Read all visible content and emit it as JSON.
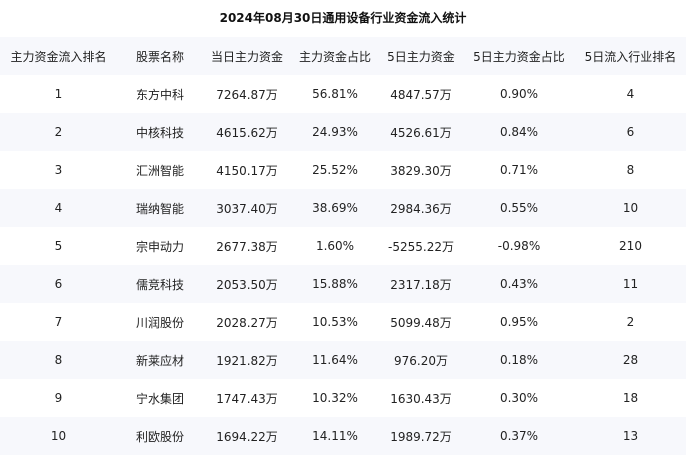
{
  "title": "2024年08月30日通用设备行业资金流入统计",
  "table": {
    "headers": [
      "主力资金流入排名",
      "股票名称",
      "当日主力资金",
      "主力资金占比",
      "5日主力资金",
      "5日主力资金占比",
      "5日流入行业排名"
    ],
    "rows": [
      [
        "1",
        "东方中科",
        "7264.87万",
        "56.81%",
        "4847.57万",
        "0.90%",
        "4"
      ],
      [
        "2",
        "中核科技",
        "4615.62万",
        "24.93%",
        "4526.61万",
        "0.84%",
        "6"
      ],
      [
        "3",
        "汇洲智能",
        "4150.17万",
        "25.52%",
        "3829.30万",
        "0.71%",
        "8"
      ],
      [
        "4",
        "瑞纳智能",
        "3037.40万",
        "38.69%",
        "2984.36万",
        "0.55%",
        "10"
      ],
      [
        "5",
        "宗申动力",
        "2677.38万",
        "1.60%",
        "-5255.22万",
        "-0.98%",
        "210"
      ],
      [
        "6",
        "儒竞科技",
        "2053.50万",
        "15.88%",
        "2317.18万",
        "0.43%",
        "11"
      ],
      [
        "7",
        "川润股份",
        "2028.27万",
        "10.53%",
        "5099.48万",
        "0.95%",
        "2"
      ],
      [
        "8",
        "新莱应材",
        "1921.82万",
        "11.64%",
        "976.20万",
        "0.18%",
        "28"
      ],
      [
        "9",
        "宁水集团",
        "1747.43万",
        "10.32%",
        "1630.43万",
        "0.30%",
        "18"
      ],
      [
        "10",
        "利欧股份",
        "1694.22万",
        "14.11%",
        "1989.72万",
        "0.37%",
        "13"
      ]
    ]
  }
}
